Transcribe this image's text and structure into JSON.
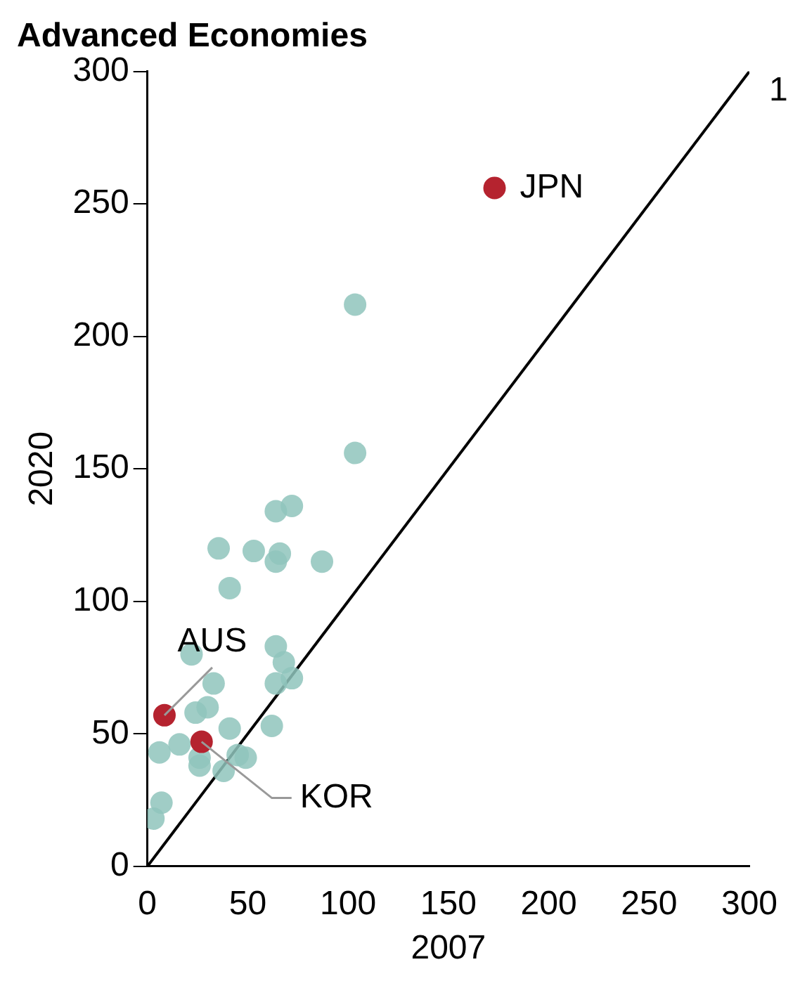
{
  "chart_data": {
    "type": "scatter",
    "title": "Advanced Economies",
    "xlabel": "2007",
    "ylabel": "2020",
    "xlim": [
      0,
      300
    ],
    "xticks": [
      0,
      50,
      100,
      150,
      200,
      250,
      300
    ],
    "ylim": [
      0,
      300
    ],
    "yticks": [
      0,
      50,
      100,
      150,
      200,
      250,
      300
    ],
    "grid": false,
    "legend": false,
    "marker": "circle",
    "series": [
      {
        "type": "scatter",
        "color": "#8fc4bc",
        "x": [
          103.5,
          103.5,
          72,
          64,
          35.5,
          53,
          66,
          64,
          87,
          41,
          64,
          22,
          68,
          33,
          72,
          64,
          30,
          24,
          62,
          41,
          6,
          16,
          26,
          26,
          38,
          45,
          49,
          7,
          3
        ],
        "values": [
          212,
          156,
          136,
          134,
          120,
          119,
          118,
          115,
          115,
          105,
          83,
          80,
          77,
          69,
          71,
          69,
          60,
          58,
          53,
          52,
          43,
          46,
          41,
          38,
          36,
          42,
          41,
          24,
          18
        ]
      },
      {
        "type": "scatter",
        "color": "#b5232f",
        "x": [
          173,
          8.5,
          27
        ],
        "values": [
          256,
          57,
          47
        ]
      },
      {
        "type": "line",
        "color": "#000000",
        "x": [
          0,
          300
        ],
        "values": [
          0,
          300
        ],
        "line_style": "solid",
        "marker": "none"
      }
    ],
    "annotations": [
      {
        "text": "JPN",
        "x": 173,
        "y": 256
      },
      {
        "text": "AUS",
        "x": 8.5,
        "y": 57
      },
      {
        "text": "KOR",
        "x": 27,
        "y": 47
      },
      "1"
    ]
  }
}
